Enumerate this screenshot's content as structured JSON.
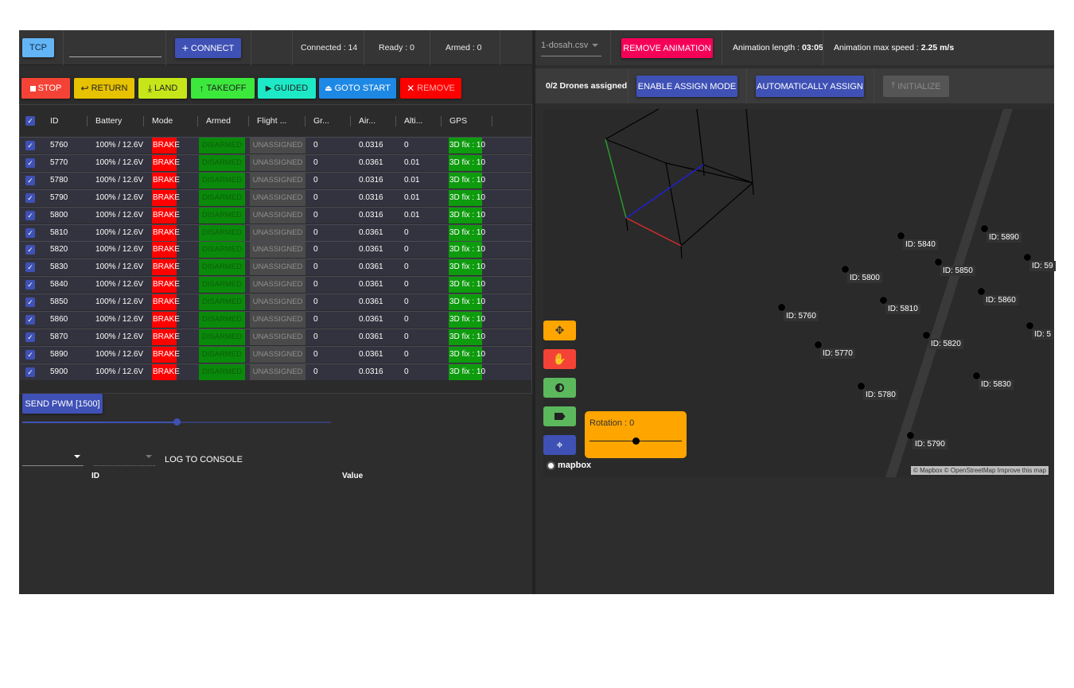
{
  "top": {
    "tcp_label": "TCP",
    "connect_label": "CONNECT",
    "connected": "Connected : 14",
    "ready": "Ready : 0",
    "armed": "Armed : 0"
  },
  "commands": {
    "stop": "STOP",
    "return": "RETURN",
    "land": "LAND",
    "takeoff": "TAKEOFF",
    "guided": "GUIDED",
    "goto_start": "GOTO START",
    "remove": "REMOVE"
  },
  "table": {
    "headers": [
      "ID",
      "Battery",
      "Mode",
      "Armed",
      "Flight ...",
      "Gr...",
      "Air...",
      "Alti...",
      "GPS"
    ],
    "rows": [
      {
        "id": "5760",
        "battery": "100% / 12.6V",
        "mode": "BRAKE",
        "armed": "DISARMED",
        "flight": "UNASSIGNED",
        "gr": "0",
        "air": "0.0316",
        "alt": "0",
        "gps": "3D fix : 10"
      },
      {
        "id": "5770",
        "battery": "100% / 12.6V",
        "mode": "BRAKE",
        "armed": "DISARMED",
        "flight": "UNASSIGNED",
        "gr": "0",
        "air": "0.0361",
        "alt": "0.01",
        "gps": "3D fix : 10"
      },
      {
        "id": "5780",
        "battery": "100% / 12.6V",
        "mode": "BRAKE",
        "armed": "DISARMED",
        "flight": "UNASSIGNED",
        "gr": "0",
        "air": "0.0316",
        "alt": "0.01",
        "gps": "3D fix : 10"
      },
      {
        "id": "5790",
        "battery": "100% / 12.6V",
        "mode": "BRAKE",
        "armed": "DISARMED",
        "flight": "UNASSIGNED",
        "gr": "0",
        "air": "0.0316",
        "alt": "0.01",
        "gps": "3D fix : 10"
      },
      {
        "id": "5800",
        "battery": "100% / 12.6V",
        "mode": "BRAKE",
        "armed": "DISARMED",
        "flight": "UNASSIGNED",
        "gr": "0",
        "air": "0.0316",
        "alt": "0.01",
        "gps": "3D fix : 10"
      },
      {
        "id": "5810",
        "battery": "100% / 12.6V",
        "mode": "BRAKE",
        "armed": "DISARMED",
        "flight": "UNASSIGNED",
        "gr": "0",
        "air": "0.0361",
        "alt": "0",
        "gps": "3D fix : 10"
      },
      {
        "id": "5820",
        "battery": "100% / 12.6V",
        "mode": "BRAKE",
        "armed": "DISARMED",
        "flight": "UNASSIGNED",
        "gr": "0",
        "air": "0.0361",
        "alt": "0",
        "gps": "3D fix : 10"
      },
      {
        "id": "5830",
        "battery": "100% / 12.6V",
        "mode": "BRAKE",
        "armed": "DISARMED",
        "flight": "UNASSIGNED",
        "gr": "0",
        "air": "0.0361",
        "alt": "0",
        "gps": "3D fix : 10"
      },
      {
        "id": "5840",
        "battery": "100% / 12.6V",
        "mode": "BRAKE",
        "armed": "DISARMED",
        "flight": "UNASSIGNED",
        "gr": "0",
        "air": "0.0361",
        "alt": "0",
        "gps": "3D fix : 10"
      },
      {
        "id": "5850",
        "battery": "100% / 12.6V",
        "mode": "BRAKE",
        "armed": "DISARMED",
        "flight": "UNASSIGNED",
        "gr": "0",
        "air": "0.0361",
        "alt": "0",
        "gps": "3D fix : 10"
      },
      {
        "id": "5860",
        "battery": "100% / 12.6V",
        "mode": "BRAKE",
        "armed": "DISARMED",
        "flight": "UNASSIGNED",
        "gr": "0",
        "air": "0.0361",
        "alt": "0",
        "gps": "3D fix : 10"
      },
      {
        "id": "5870",
        "battery": "100% / 12.6V",
        "mode": "BRAKE",
        "armed": "DISARMED",
        "flight": "UNASSIGNED",
        "gr": "0",
        "air": "0.0361",
        "alt": "0",
        "gps": "3D fix : 10"
      },
      {
        "id": "5890",
        "battery": "100% / 12.6V",
        "mode": "BRAKE",
        "armed": "DISARMED",
        "flight": "UNASSIGNED",
        "gr": "0",
        "air": "0.0361",
        "alt": "0",
        "gps": "3D fix : 10"
      },
      {
        "id": "5900",
        "battery": "100% / 12.6V",
        "mode": "BRAKE",
        "armed": "DISARMED",
        "flight": "UNASSIGNED",
        "gr": "0",
        "air": "0.0316",
        "alt": "0",
        "gps": "3D fix : 10"
      }
    ]
  },
  "pwm": {
    "button_label": "SEND PWM [1500]",
    "slider_fraction": 0.5
  },
  "console": {
    "log_label": "LOG TO CONSOLE",
    "col_id": "ID",
    "col_value": "Value"
  },
  "animation": {
    "file": "1-dosah.csv",
    "remove_label": "REMOVE ANIMATION",
    "length_label": "Animation length : ",
    "length_value": "03:05",
    "speed_label": "Animation max speed : ",
    "speed_value": "2.25 m/s"
  },
  "assign": {
    "status": "0/2 Drones assigned",
    "enable_label": "ENABLE ASSIGN MODE",
    "auto_label": "AUTOMATICALLY ASSIGN",
    "init_label": "INITIALIZE"
  },
  "map": {
    "rotation_label": "Rotation : 0",
    "rotation_fraction": 0.5,
    "logo": "mapbox",
    "attribution": "© Mapbox © OpenStreetMap Improve this map",
    "drones": [
      {
        "label": "ID: 5840"
      },
      {
        "label": "ID: 5890"
      },
      {
        "label": "ID: 59"
      },
      {
        "label": "ID: 5800"
      },
      {
        "label": "ID: 5850"
      },
      {
        "label": "ID: 5810"
      },
      {
        "label": "ID: 5860"
      },
      {
        "label": "ID: 5760"
      },
      {
        "label": "ID: 5820"
      },
      {
        "label": "ID: 5"
      },
      {
        "label": "ID: 5770"
      },
      {
        "label": "ID: 5830"
      },
      {
        "label": "ID: 5780"
      },
      {
        "label": "ID: 5790"
      }
    ]
  },
  "colors": {
    "primary": "#3f51b5",
    "stop": "#f44336",
    "return": "#e6c200",
    "land": "#c6e61a",
    "takeoff": "#3de83d",
    "guided": "#1de9c7",
    "goto": "#1e88e5",
    "remove": "#ff0000",
    "remove_animation": "#f50057",
    "map_tool": "#ffa500"
  }
}
